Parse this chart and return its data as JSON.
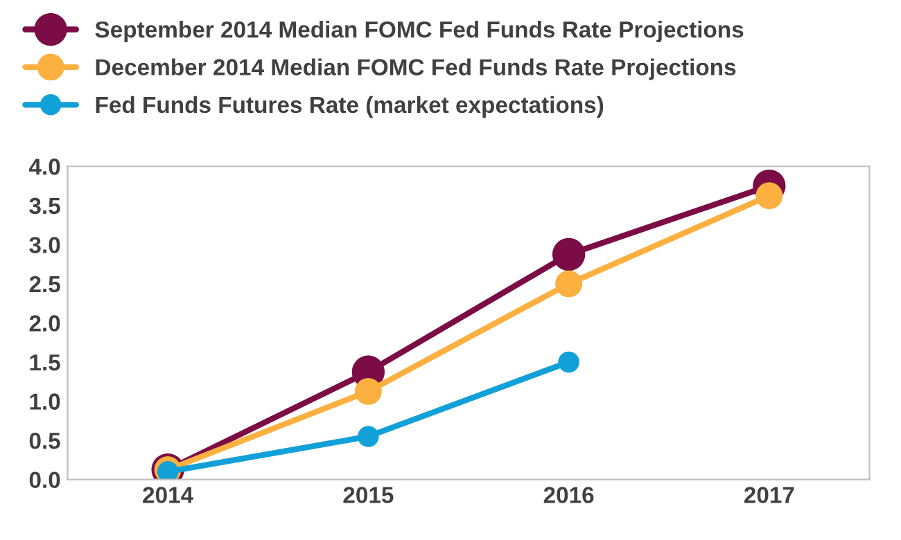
{
  "chart_data": {
    "type": "line",
    "categories": [
      "2014",
      "2015",
      "2016",
      "2017"
    ],
    "series": [
      {
        "name": "September 2014 Median FOMC Fed Funds Rate Projections",
        "color": "#7b0c45",
        "values": [
          0.125,
          1.375,
          2.875,
          3.75
        ]
      },
      {
        "name": "December 2014 Median FOMC Fed Funds Rate Projections",
        "color": "#fbb040",
        "values": [
          0.125,
          1.125,
          2.5,
          3.625
        ]
      },
      {
        "name": "Fed Funds Futures Rate (market expectations)",
        "color": "#12a0d8",
        "values": [
          0.1,
          0.55,
          1.5,
          null
        ]
      }
    ],
    "ylim": [
      0,
      4
    ],
    "yticks": [
      {
        "value": 0,
        "label": "0.0"
      },
      {
        "value": 0.5,
        "label": "0.5"
      },
      {
        "value": 1,
        "label": "1.0"
      },
      {
        "value": 1.5,
        "label": "1.5"
      },
      {
        "value": 2,
        "label": "2.0"
      },
      {
        "value": 2.5,
        "label": "2.5"
      },
      {
        "value": 3,
        "label": "3.0"
      },
      {
        "value": 3.5,
        "label": "3.5"
      },
      {
        "value": 4,
        "label": "4.0"
      }
    ],
    "grid": false,
    "legend": "top left",
    "marker": "circle",
    "line_style": "solid"
  }
}
